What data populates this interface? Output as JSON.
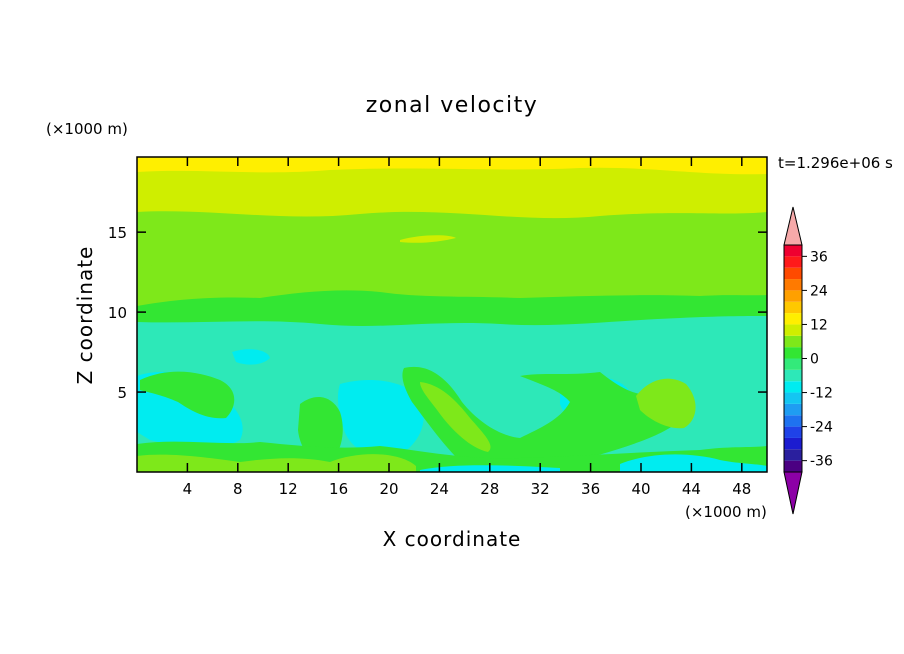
{
  "chart_data": {
    "type": "heatmap",
    "title": "zonal velocity",
    "time_label": "t=1.296e+06 s",
    "xlabel": "X coordinate",
    "ylabel": "Z coordinate",
    "x_unit": "(×1000 m)",
    "y_unit": "(×1000 m)",
    "xlim": [
      0,
      50
    ],
    "ylim": [
      0,
      19.7
    ],
    "x_ticks": [
      4,
      8,
      12,
      16,
      20,
      24,
      28,
      32,
      36,
      40,
      44,
      48
    ],
    "y_ticks": [
      5,
      10,
      15
    ],
    "colorbar": {
      "levels": [
        -40,
        -36,
        -32,
        -28,
        -24,
        -20,
        -16,
        -12,
        -8,
        -4,
        0,
        4,
        8,
        12,
        16,
        20,
        24,
        28,
        32,
        36,
        40
      ],
      "tick_labels": [
        36,
        24,
        12,
        0,
        -12,
        -24,
        -36
      ],
      "colors": [
        "#4b0082",
        "#2a1f9e",
        "#1c1cd0",
        "#1f42e8",
        "#1e72f0",
        "#1f9df2",
        "#14c6f2",
        "#00ecf0",
        "#2de8b8",
        "#33ea7a",
        "#33e633",
        "#7ee81a",
        "#cfee00",
        "#ffef00",
        "#ffc800",
        "#ffa000",
        "#ff7a00",
        "#ff4a00",
        "#ff1a1a",
        "#ef0030"
      ],
      "over_color": "#f6a9a9",
      "under_color": "#8c00a6"
    },
    "field_description_bands": [
      {
        "z_range": [
          18.8,
          19.7
        ],
        "value": 14
      },
      {
        "z_range": [
          15.7,
          18.8
        ],
        "value": 10
      },
      {
        "z_range": [
          10.8,
          15.7
        ],
        "value": 6
      },
      {
        "z_range": [
          9.6,
          10.8
        ],
        "value": 2
      },
      {
        "z_range": [
          7.4,
          9.6
        ],
        "value": -6
      },
      {
        "z_range": [
          1.8,
          7.4
        ],
        "value": -6
      },
      {
        "z_range": [
          0.6,
          1.8
        ],
        "value": 2
      },
      {
        "z_range": [
          0,
          0.6
        ],
        "value": 8
      }
    ]
  }
}
